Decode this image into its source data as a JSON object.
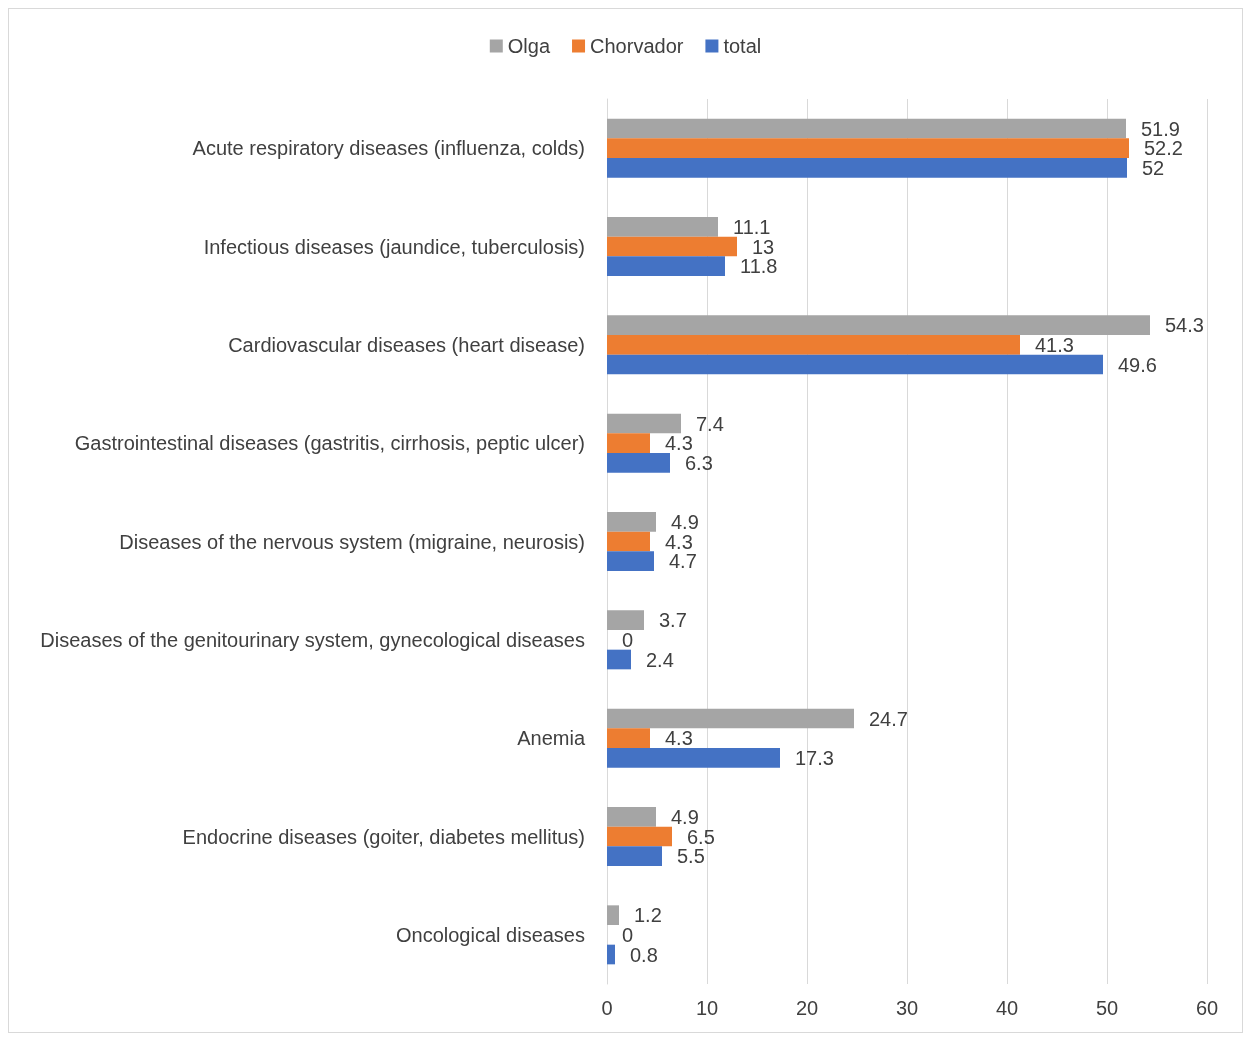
{
  "chart_data": {
    "type": "bar",
    "orientation": "horizontal",
    "categories": [
      "Acute respiratory diseases (influenza, colds)",
      "Infectious diseases (jaundice, tuberculosis)",
      "Cardiovascular diseases (heart disease)",
      "Gastrointestinal diseases (gastritis, cirrhosis, peptic ulcer)",
      "Diseases of the nervous system (migraine, neurosis)",
      "Diseases of the genitourinary system, gynecological diseases",
      "Anemia",
      "Endocrine diseases (goiter, diabetes mellitus)",
      "Oncological diseases"
    ],
    "series": [
      {
        "name": "Olga",
        "color": "#a5a5a5",
        "values": [
          51.9,
          11.1,
          54.3,
          7.4,
          4.9,
          3.7,
          24.7,
          4.9,
          1.2
        ]
      },
      {
        "name": "Chorvador",
        "color": "#ed7d31",
        "values": [
          52.2,
          13,
          41.3,
          4.3,
          4.3,
          0,
          4.3,
          6.5,
          0
        ]
      },
      {
        "name": "total",
        "color": "#4472c4",
        "values": [
          52,
          11.8,
          49.6,
          6.3,
          4.7,
          2.4,
          17.3,
          5.5,
          0.8
        ]
      }
    ],
    "xlim": [
      0,
      60
    ],
    "xticks": [
      0,
      10,
      20,
      30,
      40,
      50,
      60
    ],
    "grid": "x",
    "legend": "top",
    "data_labels": true
  }
}
